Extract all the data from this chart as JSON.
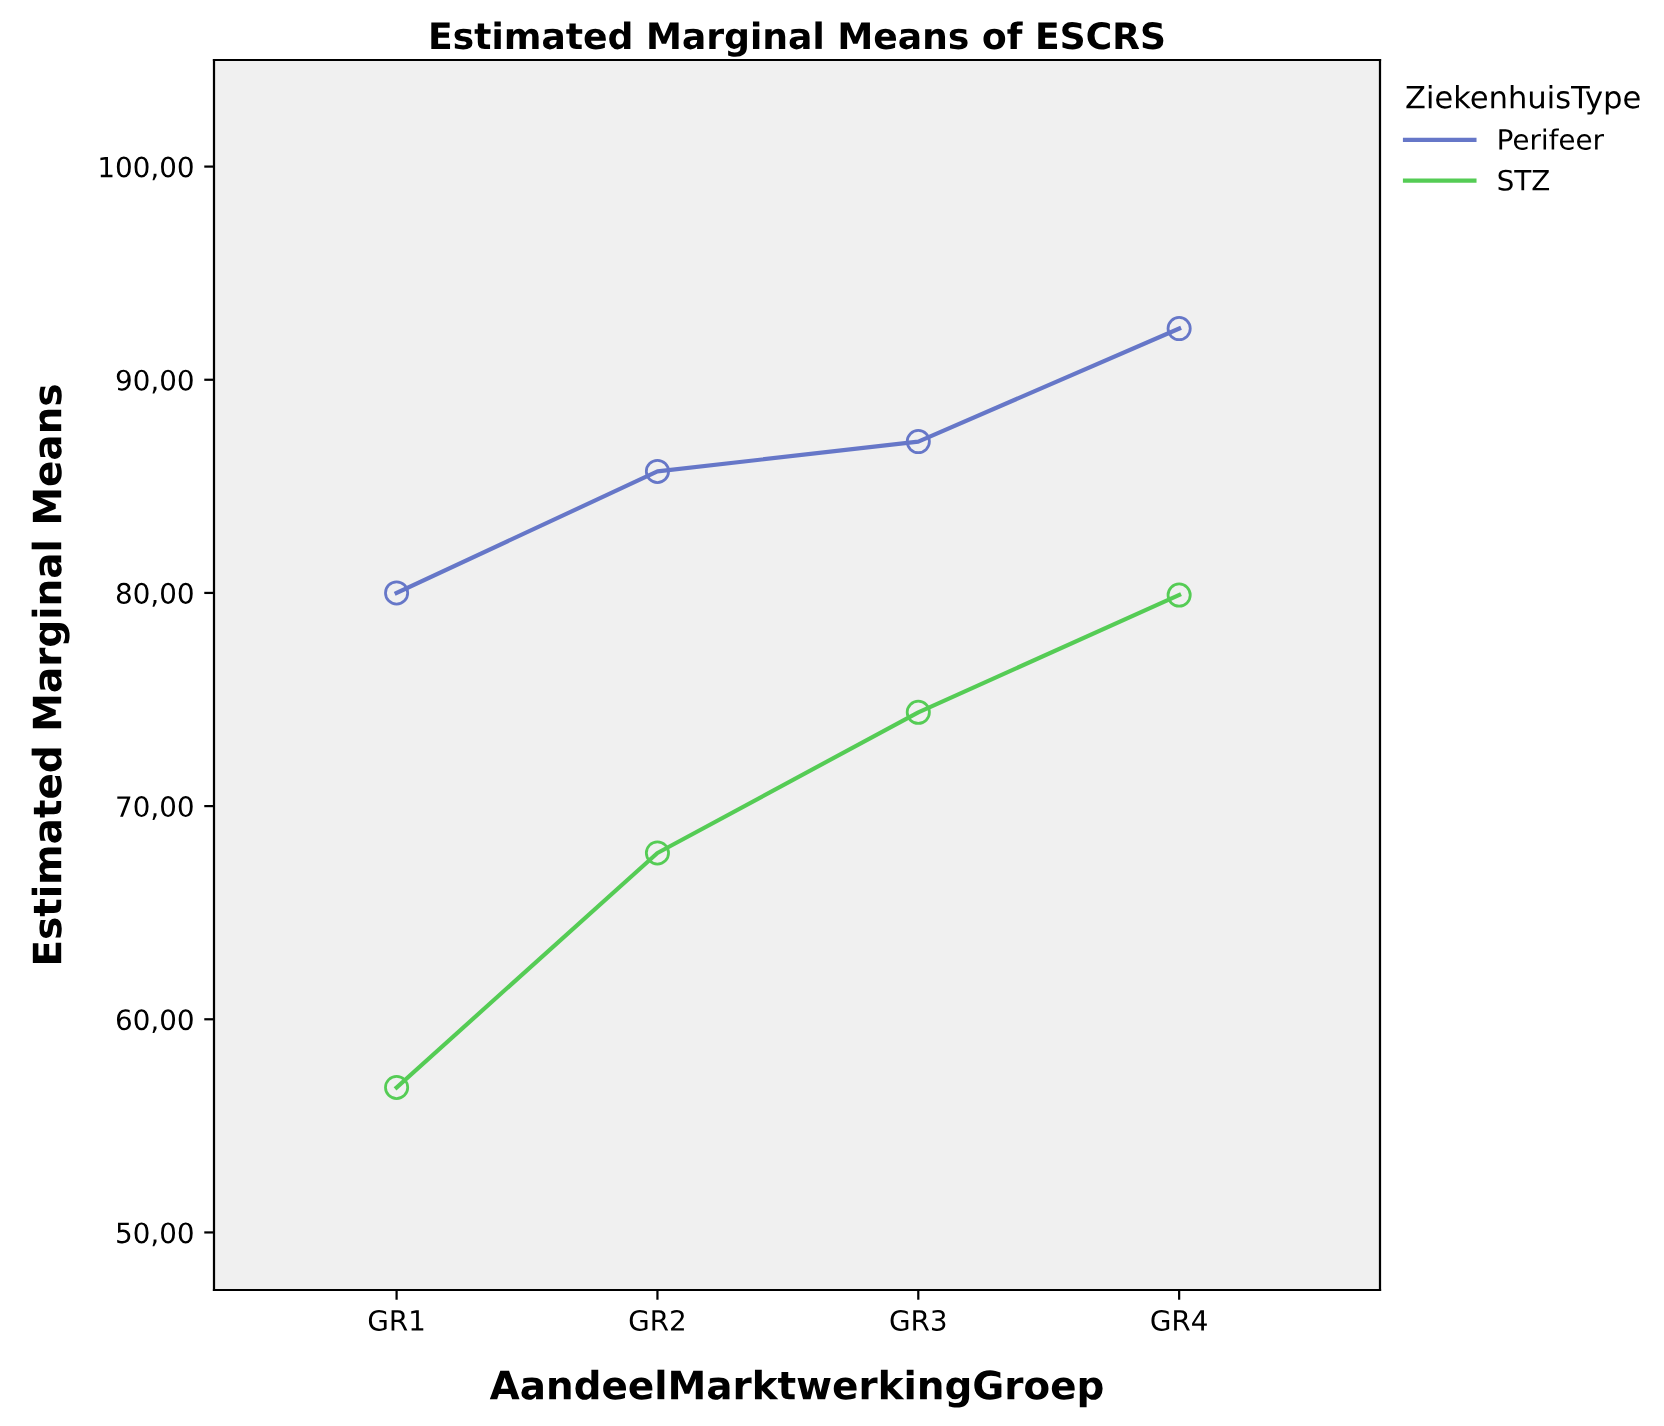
{
  "chart_data": {
    "type": "line",
    "title": "Estimated Marginal Means of ESCRS",
    "xlabel": "AandeelMarktwerkingGroep",
    "ylabel": "Estimated Marginal Means",
    "legend_title": "ZiekenhuisType",
    "legend": "top right",
    "marker": "circle",
    "line_style": "solid",
    "grid": false,
    "categories": [
      "GR1",
      "GR2",
      "GR3",
      "GR4"
    ],
    "series": [
      {
        "name": "Perifeer",
        "color": "#6677c8",
        "values": [
          80.0,
          85.7,
          87.1,
          92.4
        ]
      },
      {
        "name": "STZ",
        "color": "#55cc55",
        "values": [
          56.8,
          67.8,
          74.4,
          79.9
        ]
      }
    ],
    "ylim": [
      47.3,
      105
    ],
    "yticks": [
      {
        "value": 50,
        "label": "50,00"
      },
      {
        "value": 60,
        "label": "60,00"
      },
      {
        "value": 70,
        "label": "70,00"
      },
      {
        "value": 80,
        "label": "80,00"
      },
      {
        "value": 90,
        "label": "90,00"
      },
      {
        "value": 100,
        "label": "100,00"
      }
    ]
  }
}
